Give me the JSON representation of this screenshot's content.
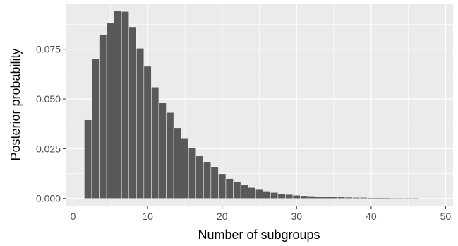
{
  "chart_data": {
    "type": "bar",
    "title": "",
    "xlabel": "Number of subgroups",
    "ylabel": "Posterior probability",
    "xlim": [
      -1,
      51
    ],
    "ylim": [
      -0.004,
      0.098
    ],
    "x_ticks": [
      0,
      10,
      20,
      30,
      40,
      50
    ],
    "x_tick_labels": [
      "0",
      "10",
      "20",
      "30",
      "40",
      "50"
    ],
    "y_ticks": [
      0,
      0.025,
      0.05,
      0.075
    ],
    "y_tick_labels": [
      "0.000",
      "0.025",
      "0.050",
      "0.075"
    ],
    "grid": true,
    "legend": "none",
    "bar_color": "#595959",
    "panel_color": "#ebebeb",
    "grid_color": "#ffffff",
    "categories": [
      2,
      3,
      4,
      5,
      6,
      7,
      8,
      9,
      10,
      11,
      12,
      13,
      14,
      15,
      16,
      17,
      18,
      19,
      20,
      21,
      22,
      23,
      24,
      25,
      26,
      27,
      28,
      29,
      30,
      31,
      32,
      33,
      34,
      35,
      36,
      37,
      38,
      39,
      40,
      41,
      42,
      43,
      44,
      45,
      46,
      47,
      48,
      49
    ],
    "values": [
      0.0395,
      0.0703,
      0.0825,
      0.0885,
      0.0945,
      0.094,
      0.0863,
      0.0755,
      0.0664,
      0.056,
      0.048,
      0.0432,
      0.0355,
      0.0304,
      0.0255,
      0.0213,
      0.0185,
      0.016,
      0.0124,
      0.01,
      0.0082,
      0.0068,
      0.0055,
      0.0045,
      0.0037,
      0.003,
      0.0024,
      0.002,
      0.0016,
      0.0014,
      0.0012,
      0.001,
      0.0009,
      0.0008,
      0.0007,
      0.0006,
      0.0005,
      0.0005,
      0.0004,
      0.0004,
      0.0004,
      0.0003,
      0.0003,
      0.0003,
      0.0003,
      0.0002,
      0.0002,
      0.0002
    ]
  }
}
